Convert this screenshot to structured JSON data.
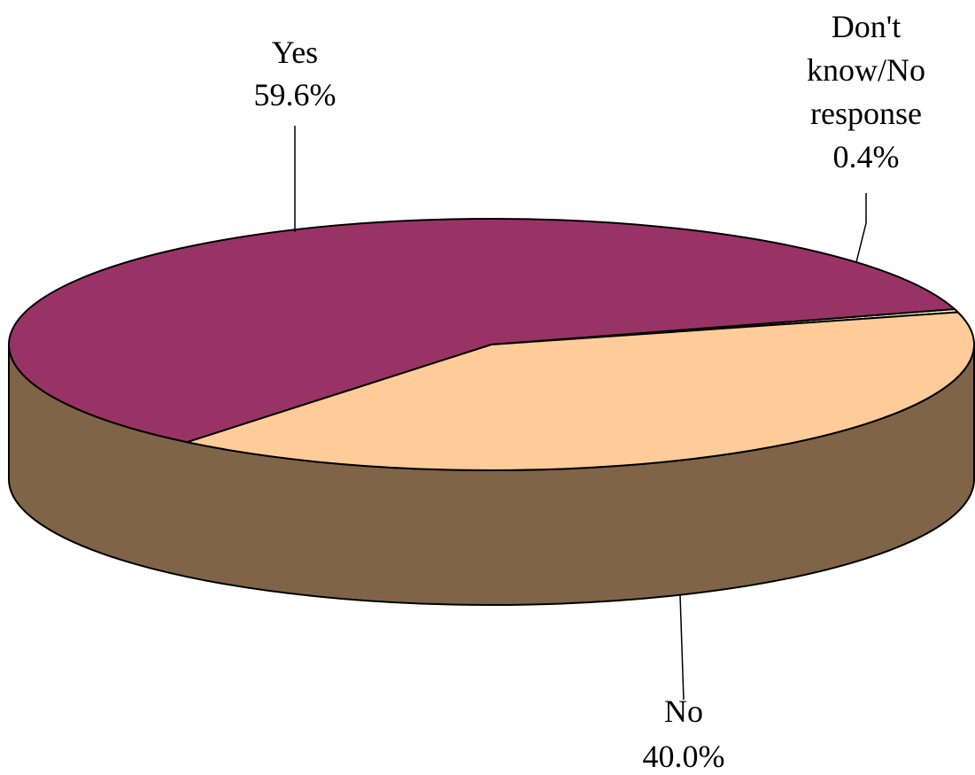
{
  "chart_data": {
    "type": "pie",
    "style": "3d",
    "title": "",
    "slices": [
      {
        "label_lines": [
          "Yes"
        ],
        "value": 59.6,
        "value_label": "59.6%",
        "color": "#993366"
      },
      {
        "label_lines": [
          "Don't",
          "know/No",
          "response"
        ],
        "value": 0.4,
        "value_label": "0.4%",
        "color": "#FFFFCC"
      },
      {
        "label_lines": [
          "No"
        ],
        "value": 40.0,
        "value_label": "40.0%",
        "color": "#FFCC99"
      }
    ],
    "side_color": "#806448",
    "outline_color": "#000000"
  }
}
